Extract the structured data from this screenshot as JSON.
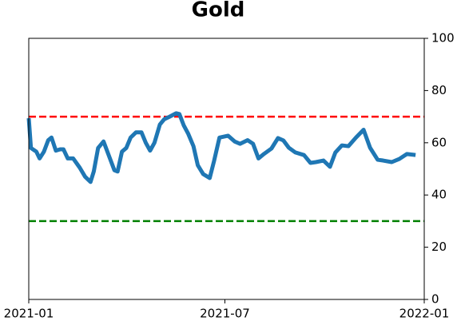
{
  "chart_data": {
    "type": "line",
    "title": "Gold",
    "x": [
      0,
      2,
      7,
      10,
      14,
      18,
      21,
      25,
      29,
      32,
      36,
      41,
      47,
      52,
      57,
      60,
      64,
      69,
      74,
      79,
      82,
      86,
      90,
      94,
      99,
      104,
      108,
      112,
      116,
      121,
      125,
      130,
      136,
      139,
      143,
      147,
      152,
      156,
      161,
      167,
      171,
      176,
      184,
      190,
      195,
      202,
      207,
      212,
      217,
      224,
      230,
      235,
      240,
      246,
      254,
      260,
      265,
      272,
      278,
      283,
      289,
      295,
      302,
      309,
      315,
      322,
      327,
      335,
      342,
      349,
      357
    ],
    "series": [
      {
        "color": "#1f77b4",
        "values": [
          69.4,
          58,
          56.6,
          54,
          56.6,
          61,
          62,
          57,
          57.5,
          57.5,
          54,
          54,
          50.5,
          47,
          45,
          49,
          58,
          60.5,
          55,
          49.5,
          49,
          56.6,
          58,
          62,
          64,
          64,
          60,
          57,
          60,
          67,
          69,
          70,
          71.3,
          71,
          66.7,
          63.6,
          58.7,
          51.4,
          48,
          46.5,
          53,
          62,
          62.7,
          60.5,
          59.6,
          61,
          59.6,
          54,
          55.7,
          57.8,
          61.8,
          60.9,
          58.1,
          56.3,
          55.3,
          52.3,
          52.6,
          53.2,
          50.8,
          56.3,
          59,
          58.7,
          62,
          65,
          58.1,
          53.5,
          53.2,
          52.6,
          53.8,
          55.7,
          55.3
        ]
      }
    ],
    "hlines": [
      {
        "value": 70,
        "color": "#ff0000"
      },
      {
        "value": 30,
        "color": "#008000"
      }
    ],
    "xlim": [
      0,
      365
    ],
    "xticks": [
      {
        "value": 0,
        "label": "2021-01"
      },
      {
        "value": 181,
        "label": "2021-07"
      },
      {
        "value": 365,
        "label": "2022-01"
      }
    ],
    "ylim": [
      0,
      100
    ],
    "yticks": [
      0,
      20,
      40,
      60,
      80,
      100
    ],
    "y_axis_side": "right"
  }
}
